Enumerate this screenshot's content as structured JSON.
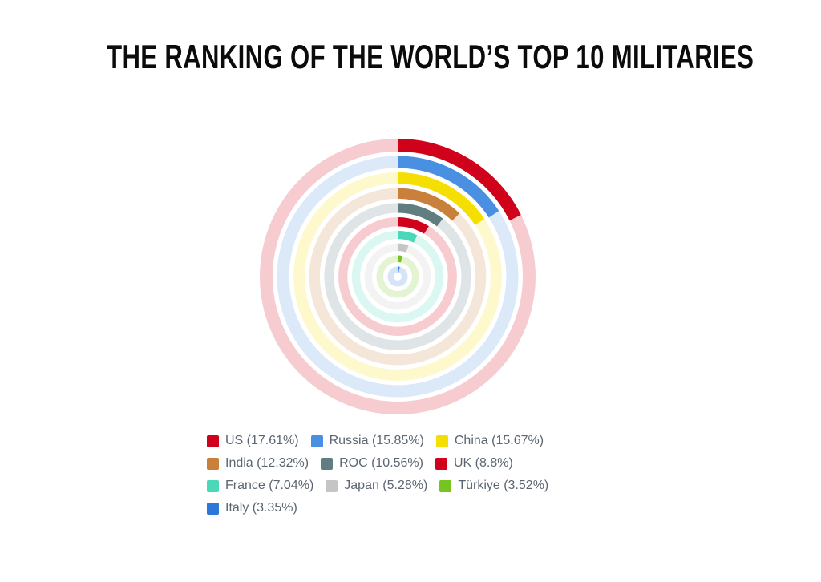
{
  "header": {
    "title": "THE RANKING OF THE WORLD’S TOP 10 MILITARIES"
  },
  "chart_data": {
    "type": "bar",
    "variant": "radial-concentric-rings",
    "title": "THE RANKING OF THE WORLD’S TOP 10 MILITARIES",
    "unit": "%",
    "rings_order": "outermost-to-innermost",
    "start_position": "12-oclock",
    "direction": "clockwise",
    "angle_scale_full_circle_pct": 100,
    "categories": [
      "US",
      "Russia",
      "China",
      "India",
      "ROC",
      "UK",
      "France",
      "Japan",
      "Türkiye",
      "Italy"
    ],
    "values": [
      17.61,
      15.85,
      15.67,
      12.32,
      10.56,
      8.8,
      7.04,
      5.28,
      3.52,
      3.35
    ],
    "colors": [
      "#d0021b",
      "#4a90e2",
      "#f5df03",
      "#c9803a",
      "#607d80",
      "#d0021b",
      "#4bd8b8",
      "#c5c5c5",
      "#76c420",
      "#2b78d9"
    ],
    "track_opacity": 0.2,
    "grid": "off",
    "legend": {
      "position": "bottom",
      "labels": [
        "US (17.61%)",
        "Russia (15.85%)",
        "China (15.67%)",
        "India (12.32%)",
        "ROC (10.56%)",
        "UK (8.8%)",
        "France (7.04%)",
        "Japan (5.28%)",
        "Türkiye (3.52%)",
        "Italy (3.35%)"
      ]
    }
  }
}
